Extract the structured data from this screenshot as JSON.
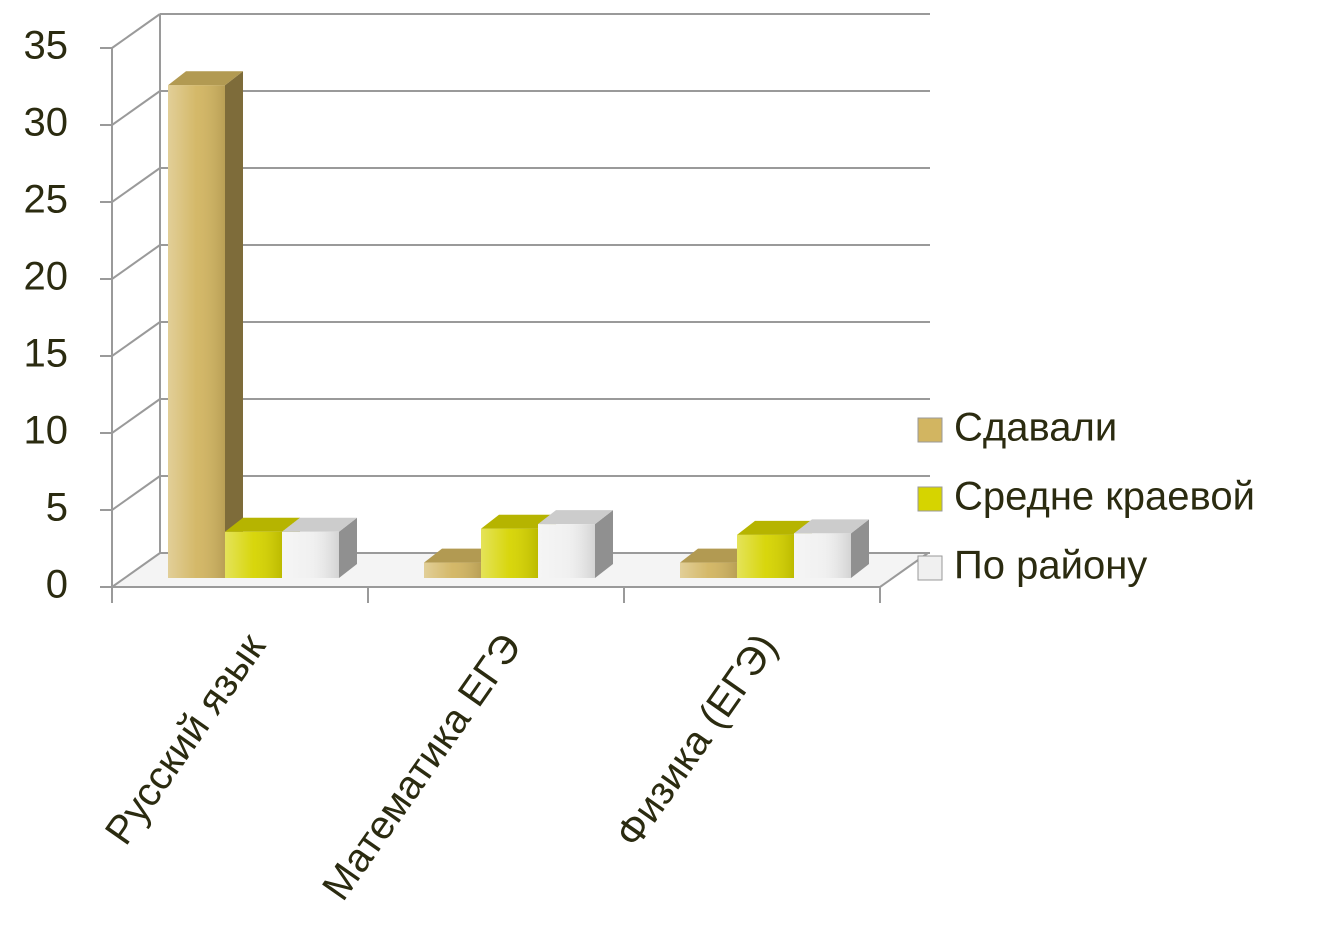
{
  "chart_data": {
    "type": "bar3d",
    "categories": [
      "Русский язык",
      "Математика ЕГЭ",
      "Физика (ЕГЭ)"
    ],
    "series": [
      {
        "name": "Сдавали",
        "color": "#d2b561",
        "values": [
          32,
          1,
          1
        ]
      },
      {
        "name": "Средне краевой",
        "color": "#d6d400",
        "values": [
          3,
          3.2,
          2.8
        ]
      },
      {
        "name": "По району",
        "color": "#f0f0f0",
        "values": [
          3,
          3.5,
          2.9
        ]
      }
    ],
    "ylim": [
      0,
      35
    ],
    "yticks": [
      0,
      5,
      10,
      15,
      20,
      25,
      30,
      35
    ],
    "grid": true,
    "legend": "right"
  }
}
